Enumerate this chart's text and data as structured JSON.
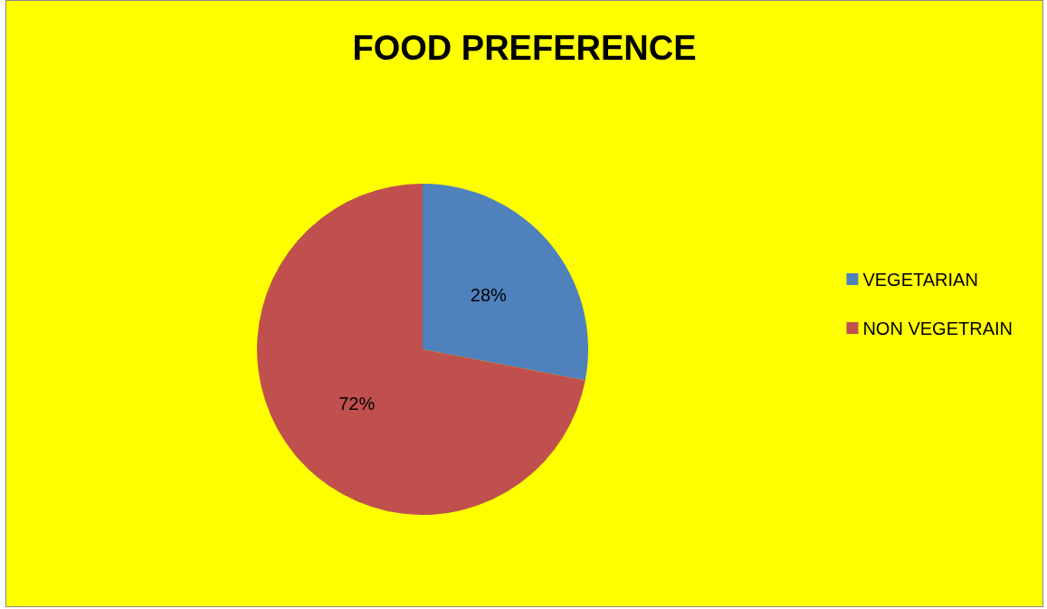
{
  "chart_data": {
    "type": "pie",
    "title": "FOOD PREFERENCE",
    "categories": [
      "VEGETARIAN",
      "NON VEGETRAIN"
    ],
    "values": [
      28,
      72
    ],
    "colors": [
      "#4f81bd",
      "#c0504d"
    ],
    "value_labels": [
      "28%",
      "72%"
    ],
    "legend": "right"
  }
}
